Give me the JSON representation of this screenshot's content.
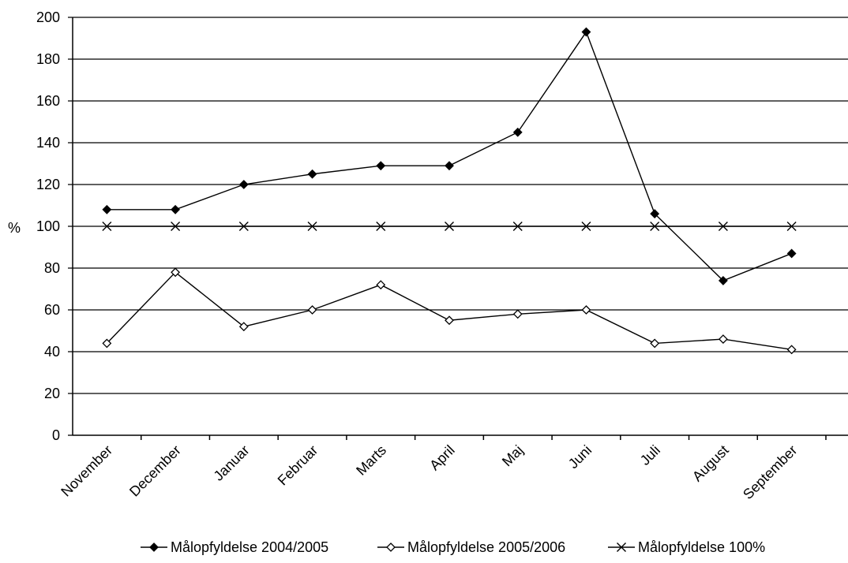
{
  "chart_data": {
    "type": "line",
    "categories": [
      "November",
      "December",
      "Januar",
      "Februar",
      "Marts",
      "April",
      "Maj",
      "Juni",
      "Juli",
      "August",
      "September"
    ],
    "series": [
      {
        "name": "Målopfyldelse 2004/2005",
        "marker": "filled-diamond",
        "values": [
          108,
          108,
          120,
          125,
          129,
          129,
          145,
          193,
          106,
          74,
          87
        ]
      },
      {
        "name": "Målopfyldelse 2005/2006",
        "marker": "open-diamond",
        "values": [
          44,
          78,
          52,
          60,
          72,
          55,
          58,
          60,
          44,
          46,
          41
        ]
      },
      {
        "name": "Målopfyldelse 100%",
        "marker": "x",
        "values": [
          100,
          100,
          100,
          100,
          100,
          100,
          100,
          100,
          100,
          100,
          100
        ]
      }
    ],
    "ylabel": "%",
    "ylim": [
      0,
      200
    ],
    "yticks": [
      "0",
      "20",
      "40",
      "60",
      "80",
      "100",
      "120",
      "140",
      "160",
      "180",
      "200"
    ],
    "grid": true,
    "legend_position": "bottom"
  }
}
